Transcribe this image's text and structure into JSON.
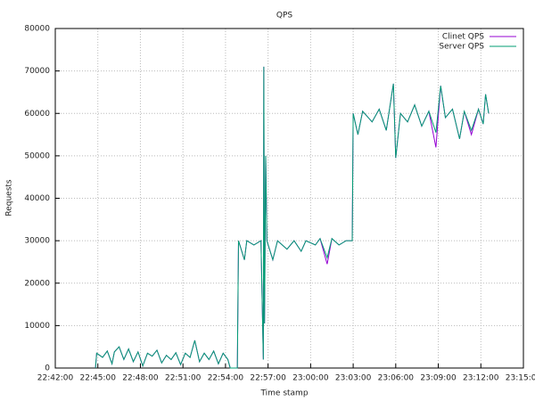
{
  "chart_data": {
    "type": "line",
    "title": "QPS",
    "x_label": "Time stamp",
    "y_label": "Requests",
    "x": [
      "22:44:50",
      "22:44:55",
      "22:45:20",
      "22:45:40",
      "22:46:00",
      "22:46:10",
      "22:46:30",
      "22:46:50",
      "22:47:10",
      "22:47:30",
      "22:47:50",
      "22:48:10",
      "22:48:30",
      "22:48:50",
      "22:49:10",
      "22:49:30",
      "22:49:50",
      "22:50:10",
      "22:50:30",
      "22:50:50",
      "22:51:10",
      "22:51:30",
      "22:51:50",
      "22:52:10",
      "22:52:30",
      "22:52:50",
      "22:53:10",
      "22:53:30",
      "22:53:50",
      "22:54:10",
      "22:54:20",
      "22:54:50",
      "22:54:55",
      "22:55:20",
      "22:55:30",
      "22:56:00",
      "22:56:30",
      "22:56:40",
      "22:56:42",
      "22:56:45",
      "22:56:50",
      "22:56:55",
      "22:57:20",
      "22:57:40",
      "22:58:20",
      "22:58:50",
      "22:59:20",
      "22:59:40",
      "23:00:20",
      "23:00:40",
      "23:01:10",
      "23:01:30",
      "23:02:00",
      "23:02:30",
      "23:02:56",
      "23:03:00",
      "23:03:20",
      "23:03:40",
      "23:04:20",
      "23:04:50",
      "23:05:20",
      "23:05:50",
      "23:06:00",
      "23:06:20",
      "23:06:50",
      "23:07:20",
      "23:07:50",
      "23:08:20",
      "23:08:50",
      "23:09:10",
      "23:09:30",
      "23:10:00",
      "23:10:30",
      "23:10:50",
      "23:11:20",
      "23:11:50",
      "23:12:10",
      "23:12:20",
      "23:12:33"
    ],
    "series": [
      {
        "name": "Clinet QPS",
        "color": "#9400d3",
        "values": [
          0,
          3500,
          2500,
          4000,
          1000,
          3800,
          5000,
          2000,
          4500,
          1500,
          3800,
          500,
          3500,
          2800,
          4200,
          1200,
          3000,
          2000,
          3600,
          800,
          3500,
          2500,
          6500,
          1500,
          3500,
          2000,
          4000,
          1000,
          3500,
          2000,
          0,
          0,
          30000,
          25500,
          30000,
          29000,
          30000,
          2000,
          71000,
          10500,
          50000,
          30000,
          25500,
          30000,
          28000,
          30000,
          27500,
          30000,
          29000,
          30500,
          24500,
          30500,
          29000,
          30000,
          30000,
          60000,
          55000,
          60500,
          58000,
          61000,
          56000,
          67000,
          49500,
          60000,
          58000,
          62000,
          57000,
          60500,
          52000,
          66500,
          59000,
          61000,
          54000,
          60500,
          55000,
          61000,
          57500,
          64500,
          60000
        ]
      },
      {
        "name": "Server QPS",
        "color": "#009e73",
        "values": [
          0,
          3500,
          2500,
          4000,
          1000,
          3800,
          5000,
          2000,
          4500,
          1500,
          3800,
          500,
          3500,
          2800,
          4200,
          1200,
          3000,
          2000,
          3600,
          800,
          3500,
          2500,
          6500,
          1500,
          3500,
          2000,
          4000,
          1000,
          3500,
          2000,
          0,
          0,
          30000,
          25500,
          30000,
          29000,
          30000,
          2000,
          71000,
          10500,
          50000,
          30000,
          25500,
          30000,
          28000,
          30000,
          27500,
          30000,
          29000,
          30500,
          26000,
          30500,
          29000,
          30000,
          30000,
          60000,
          55000,
          60500,
          58000,
          61000,
          56000,
          67000,
          49500,
          60000,
          58000,
          62000,
          57000,
          60500,
          55500,
          66500,
          59000,
          61000,
          54000,
          60500,
          56000,
          61000,
          57500,
          64500,
          60000
        ]
      }
    ],
    "xlim": [
      "22:42:00",
      "23:15:00"
    ],
    "xticks": [
      "22:42:00",
      "22:45:00",
      "22:48:00",
      "22:51:00",
      "22:54:00",
      "22:57:00",
      "23:00:00",
      "23:03:00",
      "23:06:00",
      "23:09:00",
      "23:12:00",
      "23:15:00"
    ],
    "ylim": [
      0,
      80000
    ],
    "yticks": [
      0,
      10000,
      20000,
      30000,
      40000,
      50000,
      60000,
      70000,
      80000
    ],
    "grid": true,
    "legend": "top-right"
  }
}
